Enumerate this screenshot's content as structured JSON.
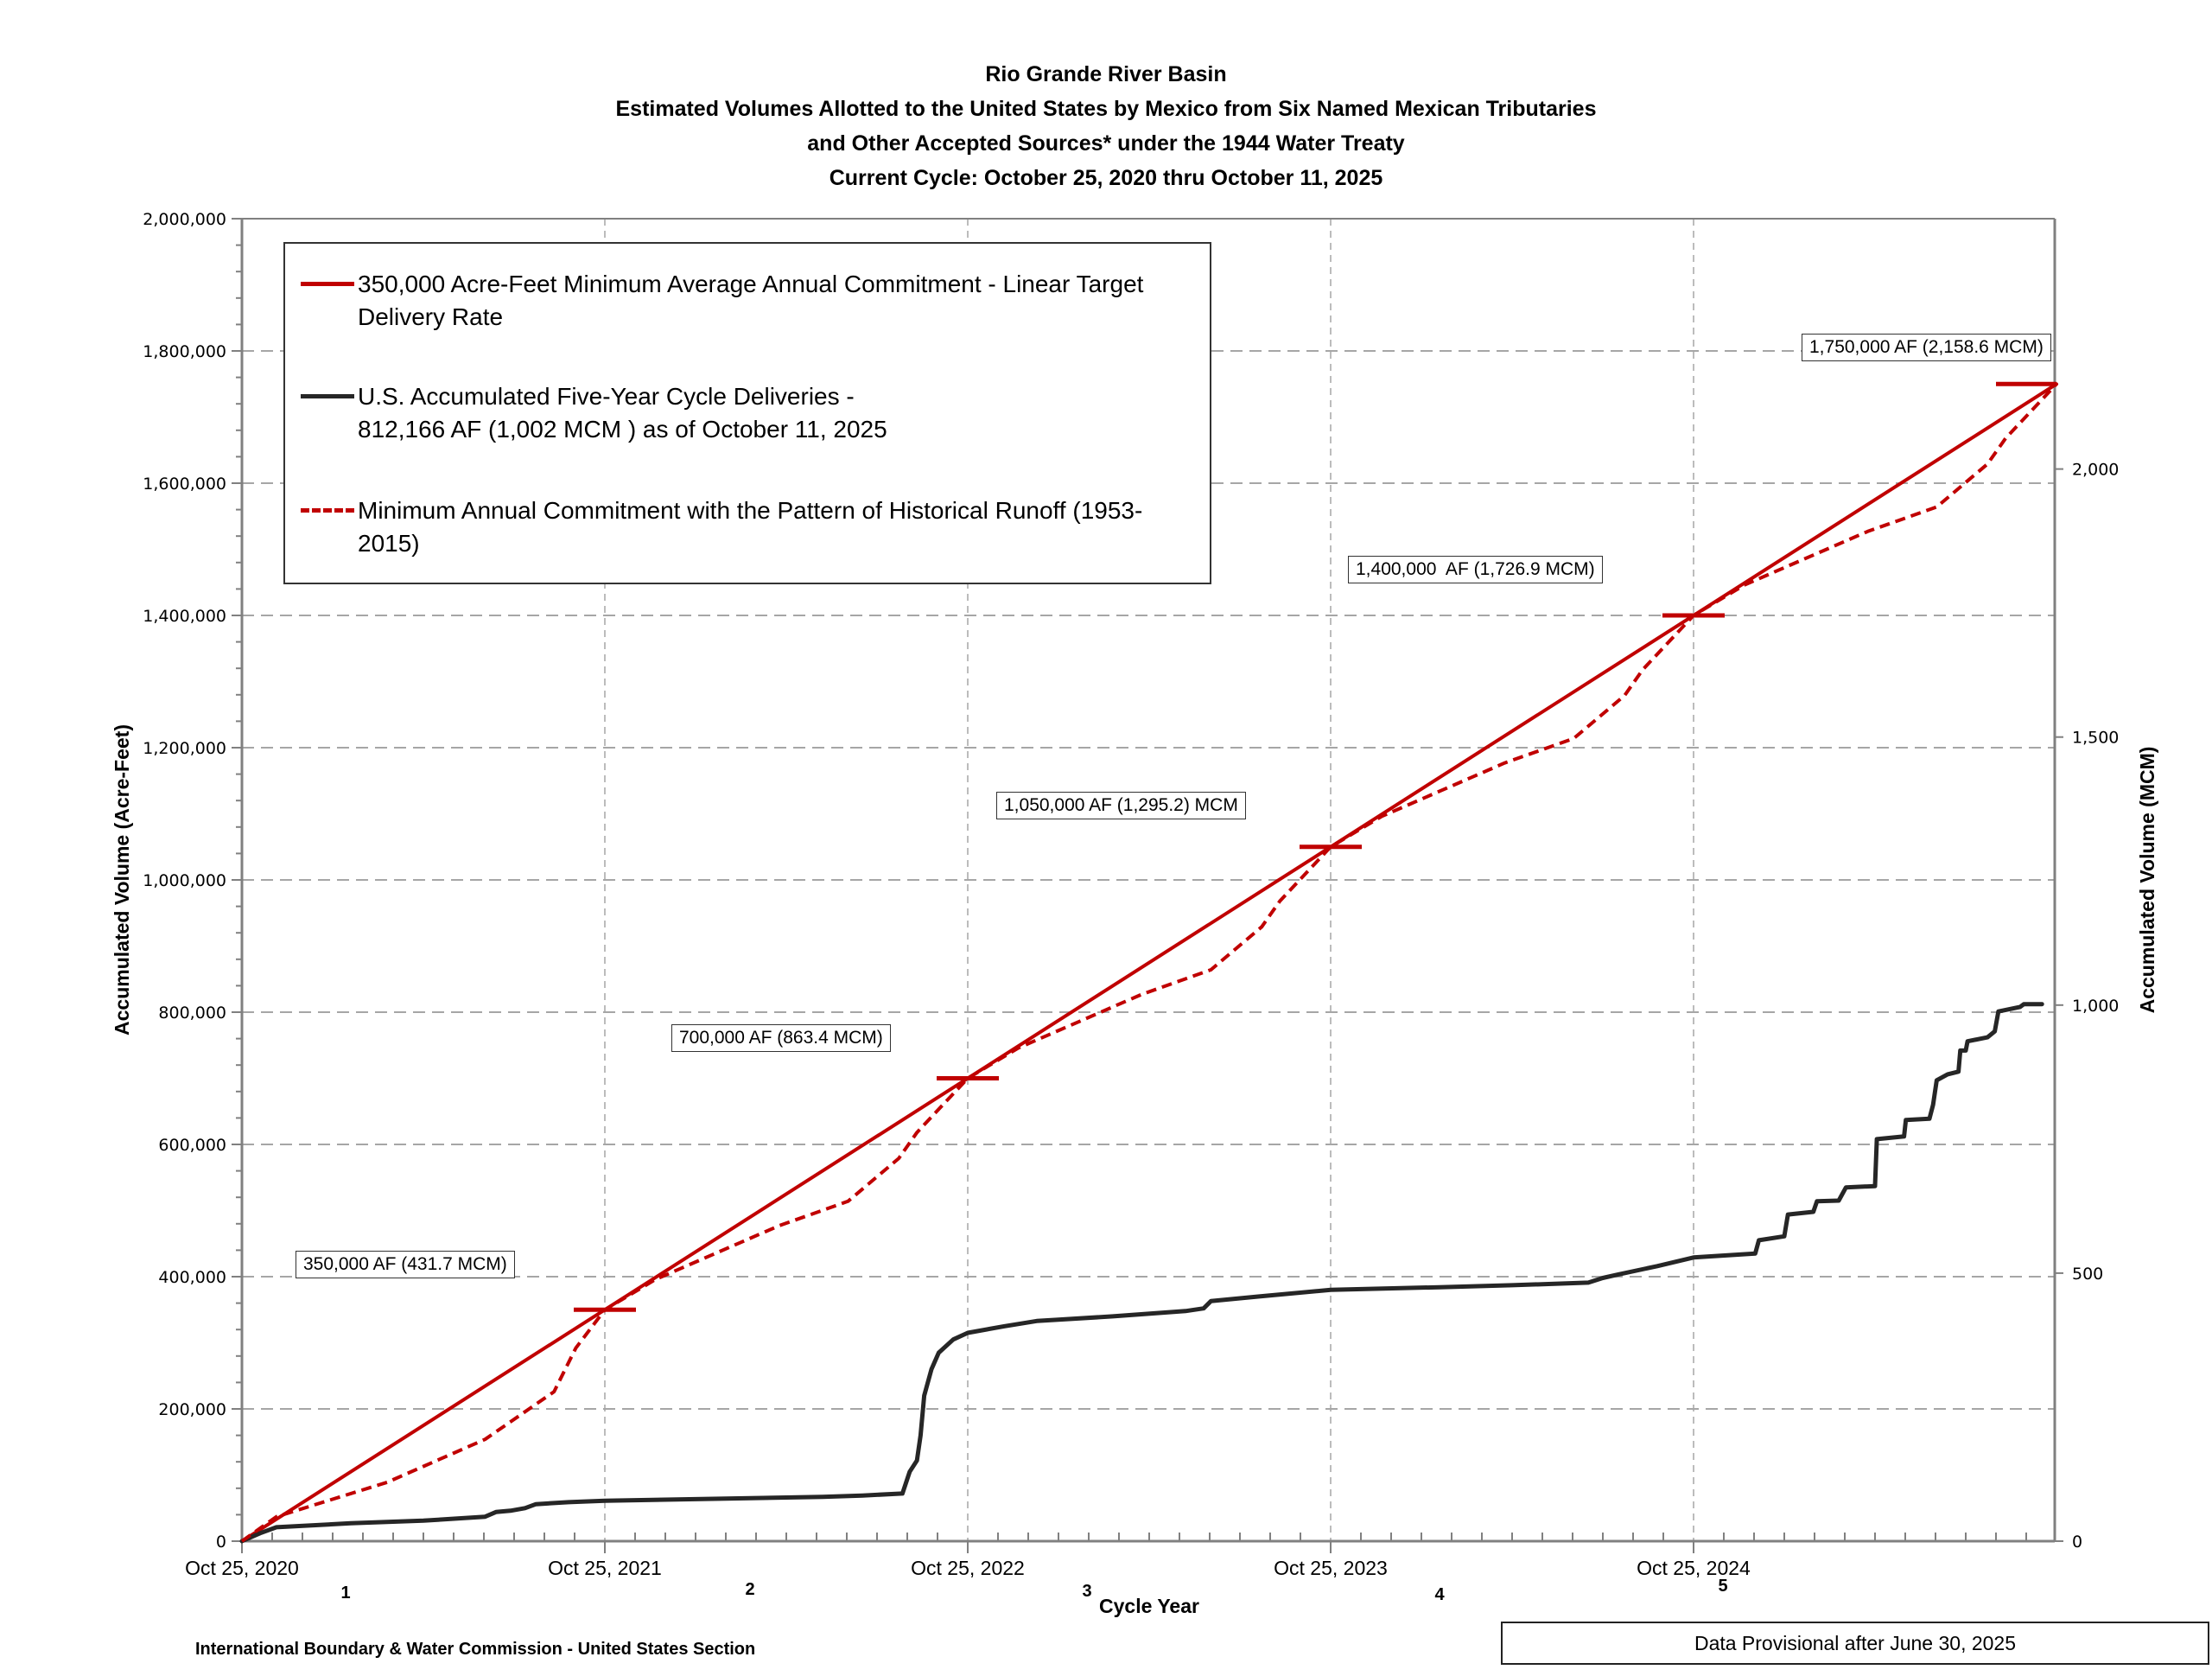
{
  "chart_data": {
    "type": "line",
    "title": [
      "Rio Grande River Basin",
      "Estimated Volumes Allotted to the United States by Mexico from Six Named Mexican Tributaries",
      "and Other Accepted Sources* under the 1944 Water Treaty",
      "Current Cycle: October 25, 2020 thru October 11, 2025"
    ],
    "xlabel": "Cycle Year",
    "ylabel": "Accumulated Volume (Acre-Feet)",
    "ylabel_right": "Accumulated Volume (MCM)",
    "x_units": "years since Oct 25, 2020",
    "xlim": [
      0,
      5
    ],
    "ylim": [
      0,
      2000000
    ],
    "ylim_right_mcm": [
      0,
      2467
    ],
    "af_to_mcm": 0.0012335,
    "grid": true,
    "x_ticks": [
      {
        "x": 0,
        "label": "Oct 25, 2020"
      },
      {
        "x": 1,
        "label": "Oct 25, 2021"
      },
      {
        "x": 2,
        "label": "Oct 25, 2022"
      },
      {
        "x": 3,
        "label": "Oct 25, 2023"
      },
      {
        "x": 4,
        "label": "Oct 25, 2024"
      }
    ],
    "cycle_year_labels": [
      {
        "x": 0.5,
        "label": "1"
      },
      {
        "x": 1.5,
        "label": "2"
      },
      {
        "x": 2.5,
        "label": "3"
      },
      {
        "x": 3.5,
        "label": "4"
      },
      {
        "x": 4.5,
        "label": "5"
      }
    ],
    "y_ticks": [
      {
        "v": 0,
        "label": "0"
      },
      {
        "v": 200000,
        "label": "200,000"
      },
      {
        "v": 400000,
        "label": "400,000"
      },
      {
        "v": 600000,
        "label": "600,000"
      },
      {
        "v": 800000,
        "label": "800,000"
      },
      {
        "v": 1000000,
        "label": "1,000,000"
      },
      {
        "v": 1200000,
        "label": "1,200,000"
      },
      {
        "v": 1400000,
        "label": "1,400,000"
      },
      {
        "v": 1600000,
        "label": "1,600,000"
      },
      {
        "v": 1800000,
        "label": "1,800,000"
      },
      {
        "v": 2000000,
        "label": "2,000,000"
      }
    ],
    "y_ticks_right": [
      {
        "v": 0,
        "label": "0"
      },
      {
        "v": 500,
        "label": "500"
      },
      {
        "v": 1000,
        "label": "1,000"
      },
      {
        "v": 1500,
        "label": "1,500"
      },
      {
        "v": 2000,
        "label": "2,000"
      }
    ],
    "series": [
      {
        "name": "350,000 Acre-Feet Minimum Average Annual Commitment - Linear Target Delivery Rate",
        "style": "solid",
        "color": "#c00000",
        "points": [
          [
            0,
            0
          ],
          [
            5,
            1750000
          ]
        ]
      },
      {
        "name": "U.S. Accumulated Five-Year Cycle Deliveries - 812,166 AF (1,002 MCM ) as of October 11, 2025",
        "style": "solid",
        "color": "#262626",
        "points": [
          [
            0,
            0
          ],
          [
            0.05,
            12000
          ],
          [
            0.095,
            21000
          ],
          [
            0.3,
            27000
          ],
          [
            0.5,
            31000
          ],
          [
            0.67,
            37000
          ],
          [
            0.7,
            44000
          ],
          [
            0.74,
            46000
          ],
          [
            0.78,
            50000
          ],
          [
            0.81,
            56000
          ],
          [
            0.9,
            59000
          ],
          [
            1.0,
            61000
          ],
          [
            1.3,
            64000
          ],
          [
            1.6,
            67000
          ],
          [
            1.71,
            69000
          ],
          [
            1.82,
            72000
          ],
          [
            1.84,
            105000
          ],
          [
            1.86,
            122000
          ],
          [
            1.87,
            160000
          ],
          [
            1.88,
            220000
          ],
          [
            1.9,
            260000
          ],
          [
            1.92,
            285000
          ],
          [
            1.96,
            305000
          ],
          [
            2.0,
            315000
          ],
          [
            2.1,
            325000
          ],
          [
            2.19,
            333000
          ],
          [
            2.4,
            340000
          ],
          [
            2.6,
            348000
          ],
          [
            2.65,
            352000
          ],
          [
            2.67,
            363000
          ],
          [
            2.8,
            370000
          ],
          [
            3.0,
            380000
          ],
          [
            3.3,
            384000
          ],
          [
            3.5,
            387000
          ],
          [
            3.71,
            391000
          ],
          [
            3.75,
            398000
          ],
          [
            3.79,
            403000
          ],
          [
            3.9,
            416000
          ],
          [
            4.0,
            429000
          ],
          [
            4.17,
            435000
          ],
          [
            4.18,
            455000
          ],
          [
            4.25,
            461000
          ],
          [
            4.26,
            494000
          ],
          [
            4.33,
            498000
          ],
          [
            4.34,
            514000
          ],
          [
            4.4,
            515000
          ],
          [
            4.42,
            535000
          ],
          [
            4.5,
            537000
          ],
          [
            4.505,
            608000
          ],
          [
            4.58,
            612000
          ],
          [
            4.585,
            637000
          ],
          [
            4.65,
            639000
          ],
          [
            4.66,
            660000
          ],
          [
            4.67,
            697000
          ],
          [
            4.7,
            706000
          ],
          [
            4.73,
            710000
          ],
          [
            4.735,
            742000
          ],
          [
            4.75,
            742000
          ],
          [
            4.755,
            756000
          ],
          [
            4.81,
            762000
          ],
          [
            4.83,
            771000
          ],
          [
            4.84,
            801000
          ],
          [
            4.9,
            808000
          ],
          [
            4.91,
            812000
          ],
          [
            4.96,
            812166
          ]
        ]
      },
      {
        "name": "Minimum Annual Commitment with the Pattern of Historical Runoff (1953-2015)",
        "style": "dashed",
        "color": "#c00000",
        "points": [
          [
            0,
            0
          ],
          [
            0.095,
            37000
          ],
          [
            0.4,
            89000
          ],
          [
            0.67,
            154000
          ],
          [
            0.86,
            226000
          ],
          [
            0.92,
            292000
          ],
          [
            1.0,
            350000
          ],
          [
            1.14,
            396000
          ],
          [
            1.48,
            477000
          ],
          [
            1.67,
            514000
          ],
          [
            1.81,
            579000
          ],
          [
            1.86,
            618000
          ],
          [
            2.0,
            700000
          ],
          [
            2.14,
            746000
          ],
          [
            2.48,
            827000
          ],
          [
            2.67,
            864000
          ],
          [
            2.81,
            929000
          ],
          [
            2.86,
            968000
          ],
          [
            3.0,
            1050000
          ],
          [
            3.14,
            1096000
          ],
          [
            3.48,
            1177000
          ],
          [
            3.67,
            1214000
          ],
          [
            3.81,
            1279000
          ],
          [
            3.86,
            1318000
          ],
          [
            4.0,
            1400000
          ],
          [
            4.14,
            1446000
          ],
          [
            4.48,
            1527000
          ],
          [
            4.67,
            1564000
          ],
          [
            4.81,
            1629000
          ],
          [
            4.86,
            1668000
          ],
          [
            5.0,
            1750000
          ]
        ]
      }
    ],
    "milestones": [
      {
        "x": 1,
        "v": 350000,
        "label": "350,000 AF (431.7 MCM)"
      },
      {
        "x": 2,
        "v": 700000,
        "label": "700,000 AF (863.4 MCM)"
      },
      {
        "x": 3,
        "v": 1050000,
        "label": "1,050,000 AF (1,295.2) MCM"
      },
      {
        "x": 4,
        "v": 1400000,
        "label": "1,400,000  AF (1,726.9 MCM)"
      },
      {
        "x": 5,
        "v": 1750000,
        "label": "1,750,000 AF (2,158.6 MCM)"
      }
    ],
    "legend": {
      "placement": "top-left",
      "items": [
        {
          "swatch": "solid-red",
          "lines": [
            "350,000 Acre-Feet Minimum Average Annual Commitment - Linear Target",
            "Delivery Rate"
          ]
        },
        {
          "swatch": "solid-black",
          "lines": [
            "U.S. Accumulated Five-Year Cycle Deliveries -",
            "812,166 AF (1,002 MCM ) as of October 11, 2025"
          ]
        },
        {
          "swatch": "dash-red",
          "lines": [
            "Minimum Annual Commitment with the Pattern of Historical Runoff (1953-",
            "2015)"
          ]
        }
      ]
    }
  },
  "footer": {
    "source": "International Boundary & Water Commission - United States Section",
    "note": "Data Provisional after June 30, 2025"
  },
  "colors": {
    "target_red": "#c00000",
    "deliveries_black": "#262626",
    "grid_gray": "#a6a6a6",
    "axis_gray": "#808080"
  }
}
